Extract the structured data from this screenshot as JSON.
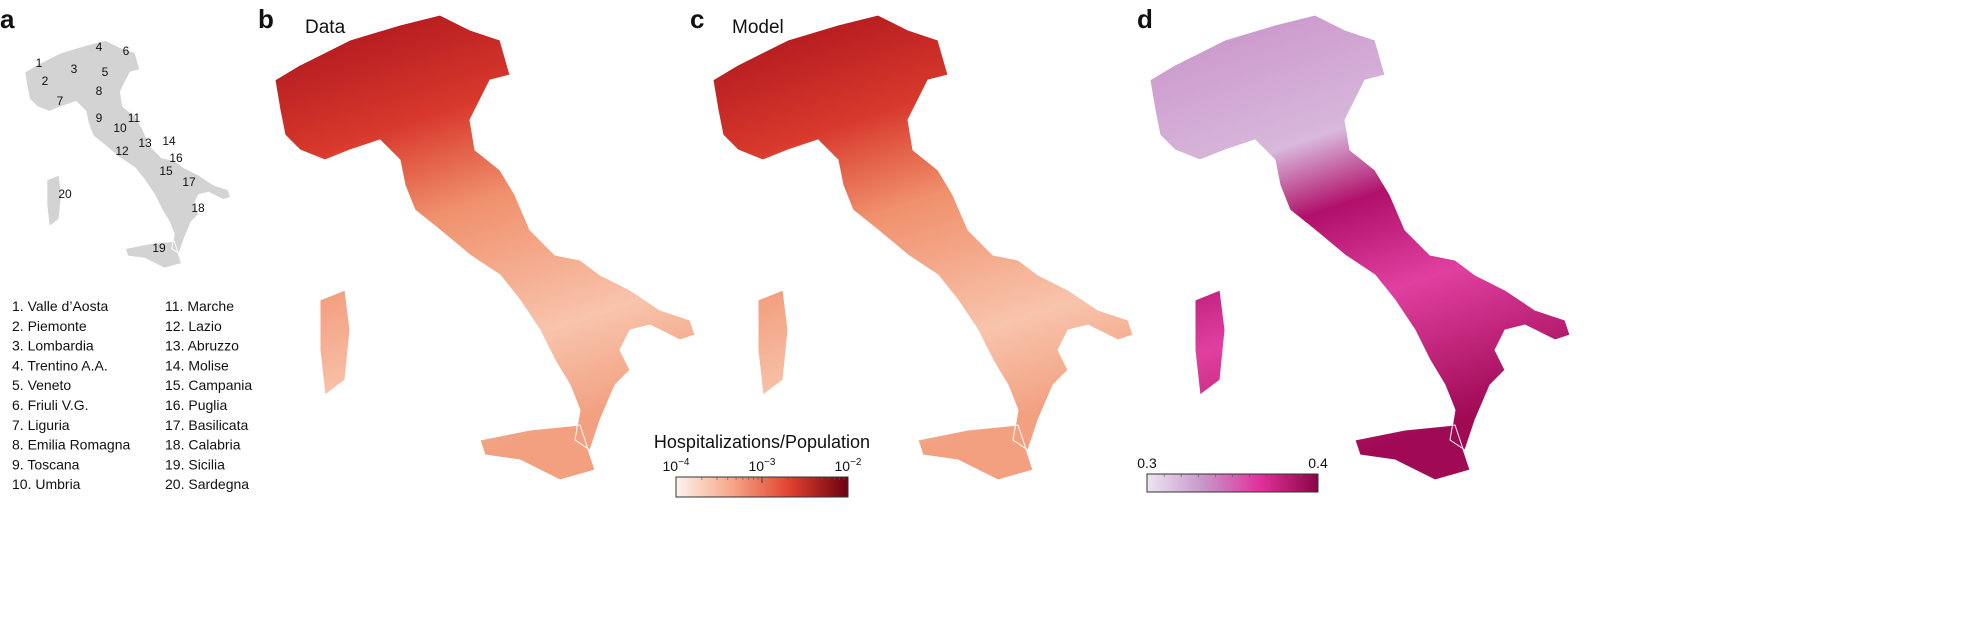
{
  "panels": [
    {
      "label": "a"
    },
    {
      "label": "b",
      "title": "Data"
    },
    {
      "label": "c",
      "title": "Model"
    },
    {
      "label": "d"
    }
  ],
  "regions": [
    {
      "map_label": "1",
      "list_label": "1. Valle d’Aosta"
    },
    {
      "map_label": "2",
      "list_label": "2. Piemonte"
    },
    {
      "map_label": "3",
      "list_label": "3. Lombardia"
    },
    {
      "map_label": "4",
      "list_label": "4. Trentino A.A."
    },
    {
      "map_label": "5",
      "list_label": "5. Veneto"
    },
    {
      "map_label": "6",
      "list_label": "6. Friuli V.G."
    },
    {
      "map_label": "7",
      "list_label": "7. Liguria"
    },
    {
      "map_label": "8",
      "list_label": "8. Emilia Romagna"
    },
    {
      "map_label": "9",
      "list_label": "9. Toscana"
    },
    {
      "map_label": "10",
      "list_label": "10. Umbria"
    },
    {
      "map_label": "11",
      "list_label": "11. Marche"
    },
    {
      "map_label": "12",
      "list_label": "12. Lazio"
    },
    {
      "map_label": "13",
      "list_label": "13. Abruzzo"
    },
    {
      "map_label": "14",
      "list_label": "14. Molise"
    },
    {
      "map_label": "15",
      "list_label": "15. Campania"
    },
    {
      "map_label": "16",
      "list_label": "16. Puglia"
    },
    {
      "map_label": "17",
      "list_label": "17. Basilicata"
    },
    {
      "map_label": "18",
      "list_label": "18. Calabria"
    },
    {
      "map_label": "19",
      "list_label": "19. Sicilia"
    },
    {
      "map_label": "20",
      "list_label": "20. Sardegna"
    }
  ],
  "colorbars": [
    {
      "title": "Hospitalizations/Population",
      "scale": "log",
      "lim": [
        0.0001,
        0.01
      ],
      "ticks": [
        {
          "value": 0.0001,
          "label": "10",
          "exponent": "−4"
        },
        {
          "value": 0.001,
          "label": "10",
          "exponent": "−3"
        },
        {
          "value": 0.01,
          "label": "10",
          "exponent": "−2"
        }
      ],
      "colors": [
        "#fdf3ee",
        "#f4a585",
        "#e0402e",
        "#6b0010"
      ]
    },
    {
      "scale": "linear",
      "lim": [
        0.3,
        0.4
      ],
      "ticks": [
        0.3,
        0.4
      ],
      "colors": [
        "#ece6f2",
        "#c895c8",
        "#e0309a",
        "#8a0545"
      ]
    }
  ]
}
